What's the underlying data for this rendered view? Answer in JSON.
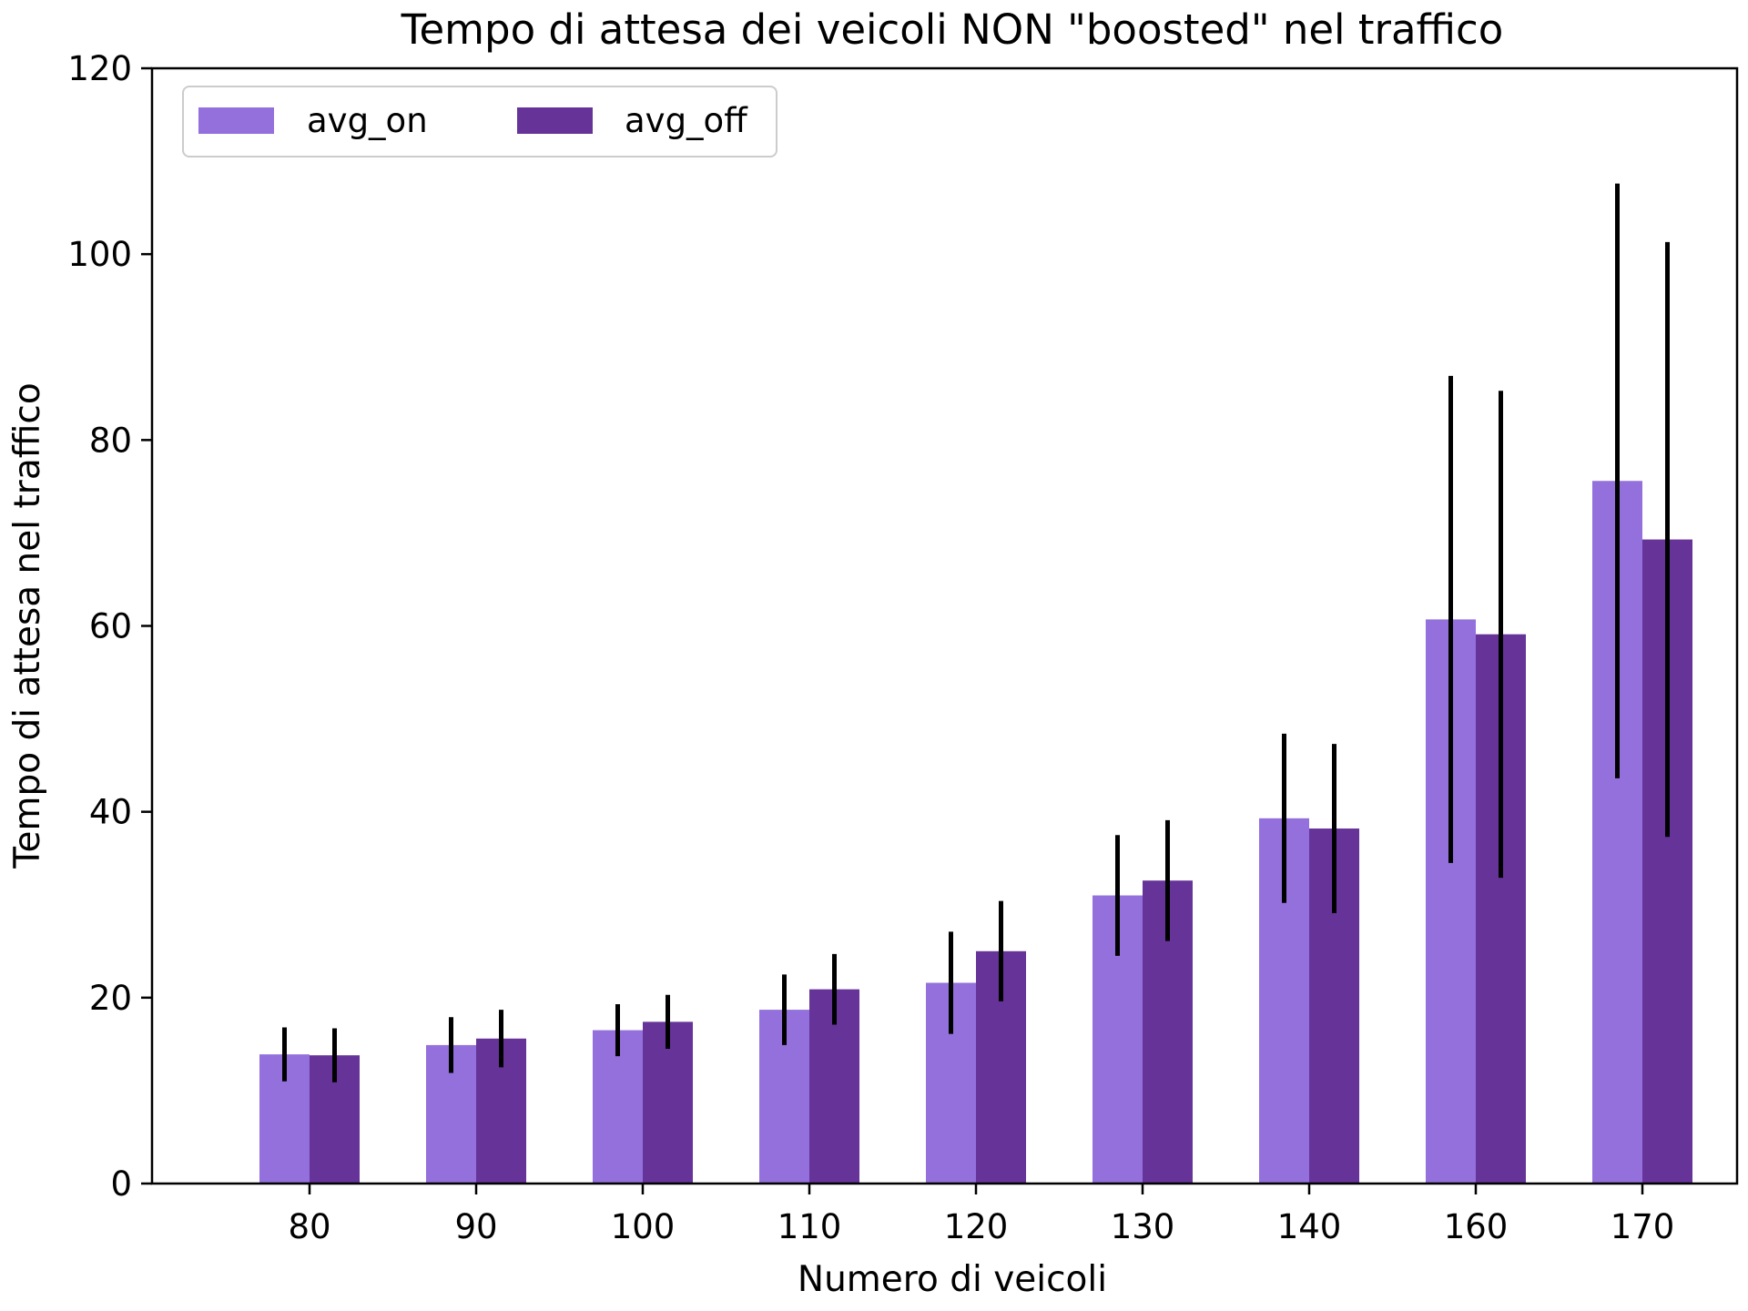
{
  "chart_data": {
    "type": "bar",
    "title": "Tempo di attesa dei veicoli NON \"boosted\" nel traffico",
    "xlabel": "Numero di veicoli",
    "ylabel": "Tempo di attesa nel traffico",
    "categories": [
      "80",
      "90",
      "100",
      "110",
      "120",
      "130",
      "140",
      "160",
      "170"
    ],
    "ylim": [
      0,
      120
    ],
    "yticks": [
      "0",
      "20",
      "40",
      "60",
      "80",
      "100",
      "120"
    ],
    "grid": false,
    "legend_position": "top-left",
    "series": [
      {
        "name": "avg_on",
        "color": "#9370db",
        "values": [
          13.9,
          14.9,
          16.5,
          18.7,
          21.6,
          31.0,
          39.3,
          60.7,
          75.6
        ],
        "error": [
          2.9,
          3.0,
          2.8,
          3.8,
          5.5,
          6.5,
          9.1,
          26.2,
          32.0
        ]
      },
      {
        "name": "avg_off",
        "color": "#663399",
        "values": [
          13.8,
          15.6,
          17.4,
          20.9,
          25.0,
          32.6,
          38.2,
          59.1,
          69.3
        ],
        "error": [
          2.9,
          3.1,
          2.9,
          3.8,
          5.4,
          6.5,
          9.1,
          26.2,
          32.0
        ]
      }
    ]
  }
}
